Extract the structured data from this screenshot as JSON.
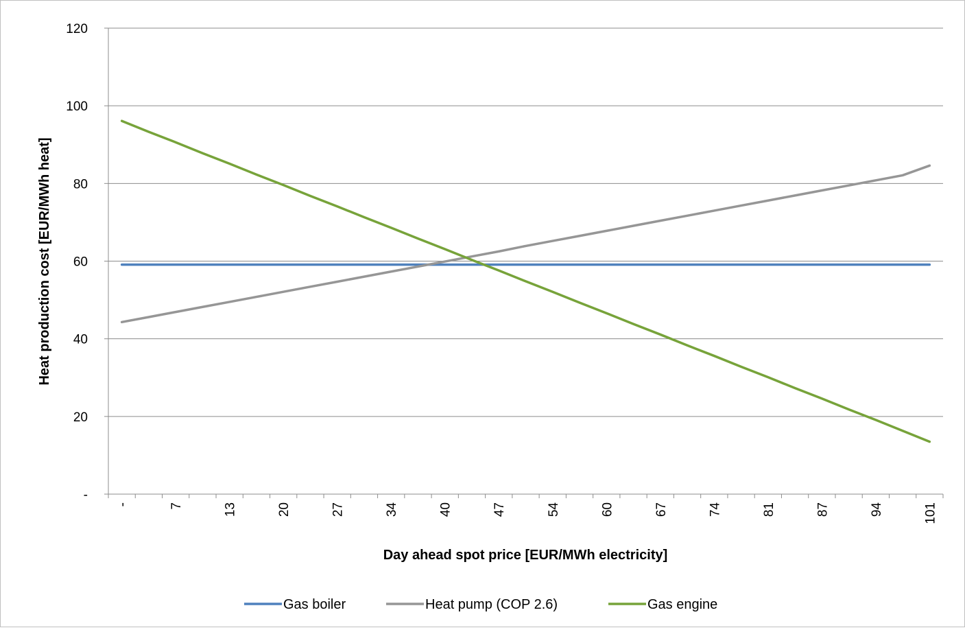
{
  "chart_data": {
    "type": "line",
    "title": "",
    "xlabel": "Day ahead spot price [EUR/MWh electricity]",
    "ylabel": "Heat production cost  [EUR/MWh heat]",
    "categories": [
      "-",
      "",
      "7",
      "",
      "13",
      "",
      "20",
      "",
      "27",
      "",
      "34",
      "",
      "40",
      "",
      "47",
      "",
      "54",
      "",
      "60",
      "",
      "67",
      "",
      "74",
      "",
      "81",
      "",
      "87",
      "",
      "94",
      "",
      "101"
    ],
    "x": [
      0,
      3.37,
      6.73,
      10.1,
      13.47,
      16.83,
      20.2,
      23.57,
      26.93,
      30.3,
      33.67,
      37.03,
      40.4,
      43.77,
      47.13,
      50.5,
      53.87,
      57.23,
      60.6,
      63.97,
      67.33,
      70.7,
      74.07,
      77.43,
      80.8,
      84.17,
      87.53,
      90.9,
      94.27,
      97.63,
      101
    ],
    "ylim": [
      0,
      120
    ],
    "yticks": [
      0,
      20,
      40,
      60,
      80,
      100,
      120
    ],
    "yticklabels": [
      "-",
      "20",
      "40",
      "60",
      "80",
      "100",
      "120"
    ],
    "grid": true,
    "legend_position": "bottom",
    "series": [
      {
        "name": "Gas boiler",
        "color": "#4f81bd",
        "values": [
          59.1,
          59.1,
          59.1,
          59.1,
          59.1,
          59.1,
          59.1,
          59.1,
          59.1,
          59.1,
          59.1,
          59.1,
          59.1,
          59.1,
          59.1,
          59.1,
          59.1,
          59.1,
          59.1,
          59.1,
          59.1,
          59.1,
          59.1,
          59.1,
          59.1,
          59.1,
          59.1,
          59.1,
          59.1,
          59.1,
          59.1
        ]
      },
      {
        "name": "Heat pump (COP 2.6)",
        "color": "#969696",
        "values": [
          44.3,
          45.6,
          46.9,
          48.2,
          49.5,
          50.8,
          52.1,
          53.4,
          54.7,
          56.0,
          57.3,
          58.6,
          59.9,
          61.2,
          62.5,
          63.9,
          65.2,
          66.5,
          67.8,
          69.1,
          70.4,
          71.7,
          73.0,
          74.3,
          75.6,
          76.9,
          78.2,
          79.5,
          80.8,
          82.1,
          84.6
        ]
      },
      {
        "name": "Gas engine",
        "color": "#77a33a",
        "values": [
          96.1,
          93.3,
          90.6,
          87.8,
          85.1,
          82.3,
          79.6,
          76.8,
          74.1,
          71.3,
          68.6,
          65.8,
          63.1,
          60.3,
          57.6,
          54.8,
          52.1,
          49.3,
          46.6,
          43.8,
          41.1,
          38.3,
          35.6,
          32.8,
          30.1,
          27.3,
          24.6,
          21.8,
          19.1,
          16.3,
          13.5
        ]
      }
    ]
  }
}
